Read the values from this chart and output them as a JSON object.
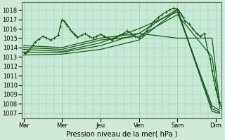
{
  "xlabel": "Pression niveau de la mer( hPa )",
  "bg_color": "#d0e8d8",
  "plot_bg_color": "#c8e8d8",
  "grid_color": "#a8c8b0",
  "line_color": "#1a5c1a",
  "ylim": [
    1006.5,
    1018.8
  ],
  "yticks": [
    1007,
    1008,
    1009,
    1010,
    1011,
    1012,
    1013,
    1014,
    1015,
    1016,
    1017,
    1018
  ],
  "xtick_labels": [
    "Mar",
    "Mer",
    "Jeu",
    "Ven",
    "Sam",
    "Dim"
  ],
  "xlim": [
    -0.05,
    5.15
  ],
  "lines": [
    {
      "x": [
        0,
        1,
        2,
        3,
        4,
        4.9,
        5.1
      ],
      "y": [
        1013.2,
        1013.3,
        1013.8,
        1014.8,
        1018.0,
        1007.2,
        1007.0
      ],
      "marker": "None",
      "lw": 0.9
    },
    {
      "x": [
        0,
        1,
        2,
        3,
        4,
        4.9,
        5.1
      ],
      "y": [
        1013.5,
        1013.5,
        1014.2,
        1015.5,
        1018.1,
        1007.5,
        1007.1
      ],
      "marker": "None",
      "lw": 0.9
    },
    {
      "x": [
        0,
        1,
        2,
        3,
        4,
        4.9,
        5.1
      ],
      "y": [
        1013.8,
        1013.6,
        1014.5,
        1016.0,
        1017.8,
        1007.8,
        1007.3
      ],
      "marker": "None",
      "lw": 0.9
    },
    {
      "x": [
        0,
        1,
        2,
        3,
        4,
        4.9,
        5.1
      ],
      "y": [
        1014.0,
        1013.8,
        1014.8,
        1015.2,
        1017.5,
        1013.0,
        1007.5
      ],
      "marker": "None",
      "lw": 0.9
    },
    {
      "x": [
        0,
        1,
        2,
        3,
        4,
        4.9,
        5.1
      ],
      "y": [
        1014.2,
        1014.0,
        1015.0,
        1015.5,
        1015.0,
        1015.0,
        1008.0
      ],
      "marker": "None",
      "lw": 0.9
    },
    {
      "x": [
        0,
        0.05,
        0.1,
        0.15,
        0.2,
        0.25,
        0.3,
        0.4,
        0.5,
        0.6,
        0.7,
        0.8,
        0.9,
        0.95,
        1.0,
        1.05,
        1.1,
        1.15,
        1.2,
        1.25,
        1.3,
        1.35,
        1.4,
        1.5,
        1.6,
        1.7,
        1.8,
        1.9,
        2.0,
        2.1,
        2.2,
        2.3,
        2.4,
        2.5,
        2.6,
        2.7,
        2.8,
        2.9,
        3.0,
        3.1,
        3.2,
        3.3,
        3.4,
        3.5,
        3.6,
        3.7,
        3.8,
        3.9,
        4.0,
        4.05,
        4.1,
        4.15,
        4.2,
        4.3,
        4.4,
        4.5,
        4.6,
        4.7,
        4.8,
        4.85,
        4.9,
        4.95,
        5.0,
        5.05,
        5.1,
        5.15
      ],
      "y": [
        1013.5,
        1013.4,
        1013.6,
        1013.8,
        1014.0,
        1014.3,
        1014.6,
        1014.9,
        1015.2,
        1015.0,
        1014.8,
        1015.0,
        1015.3,
        1016.2,
        1017.0,
        1016.8,
        1016.5,
        1016.3,
        1016.0,
        1015.7,
        1015.5,
        1015.3,
        1015.1,
        1015.3,
        1015.5,
        1015.2,
        1015.0,
        1015.2,
        1015.4,
        1015.2,
        1015.0,
        1014.8,
        1015.0,
        1015.3,
        1015.5,
        1015.8,
        1015.5,
        1015.2,
        1015.0,
        1015.3,
        1015.8,
        1016.3,
        1016.8,
        1017.2,
        1017.5,
        1017.8,
        1018.0,
        1018.2,
        1018.1,
        1017.8,
        1017.5,
        1017.2,
        1016.8,
        1016.5,
        1016.0,
        1015.5,
        1015.2,
        1015.5,
        1013.5,
        1012.8,
        1011.5,
        1010.5,
        1009.5,
        1008.8,
        1008.2,
        1007.5
      ],
      "marker": "+",
      "ms": 2.5,
      "lw": 0.9
    }
  ]
}
